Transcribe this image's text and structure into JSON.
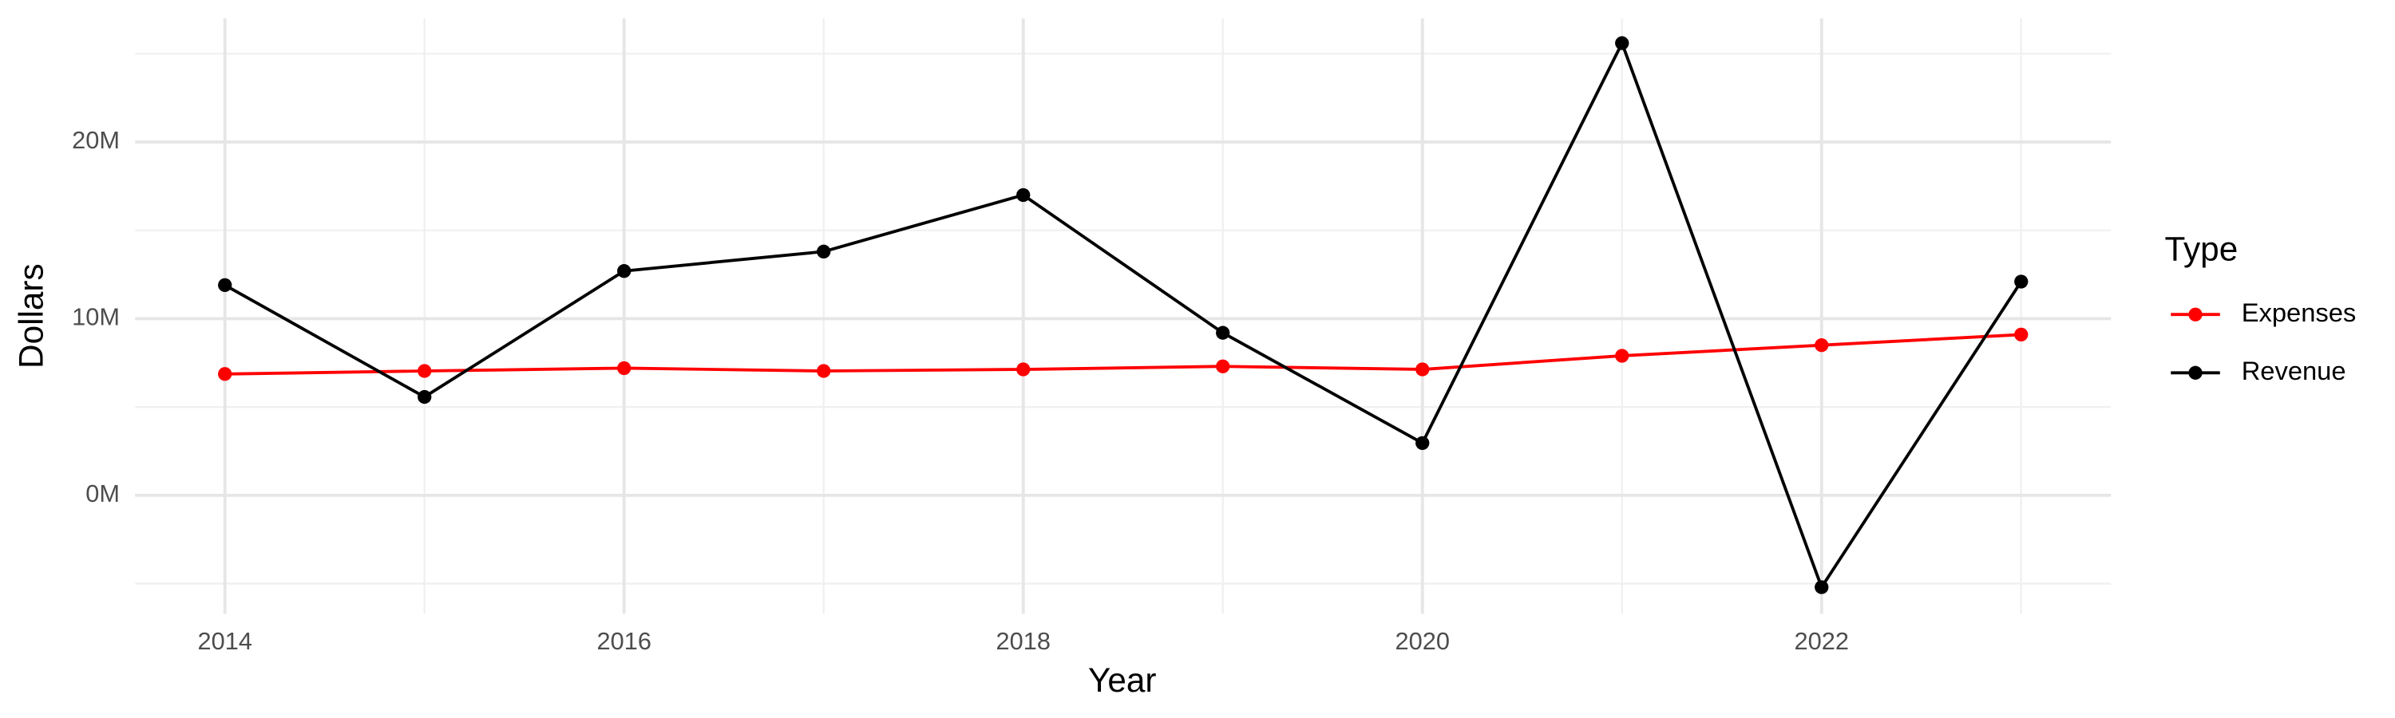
{
  "chart_data": {
    "type": "line",
    "x_label": "Year",
    "y_label": "Dollars",
    "legend_title": "Type",
    "legend_position": "right",
    "x": [
      2014,
      2015,
      2016,
      2017,
      2018,
      2019,
      2020,
      2021,
      2022,
      2023
    ],
    "series": [
      {
        "name": "Expenses",
        "color": "#ff0000",
        "values": [
          6870000,
          7040000,
          7200000,
          7040000,
          7130000,
          7300000,
          7130000,
          7900000,
          8500000,
          9100000
        ]
      },
      {
        "name": "Revenue",
        "color": "#000000",
        "values": [
          11900000,
          5570000,
          12700000,
          13800000,
          17000000,
          9200000,
          2960000,
          25600000,
          -5200000,
          12100000
        ]
      }
    ],
    "xlim": [
      2013.55,
      2023.45
    ],
    "xticks": [
      2014,
      2016,
      2018,
      2020,
      2022
    ],
    "x_minor_ticks": [
      2015,
      2017,
      2019,
      2021,
      2023
    ],
    "ylim": [
      -6700000,
      27000000
    ],
    "yticks": [
      {
        "value": 0,
        "label": "0M"
      },
      {
        "value": 10000000,
        "label": "10M"
      },
      {
        "value": 20000000,
        "label": "20M"
      }
    ],
    "y_minor_ticks": [
      -5000000,
      5000000,
      15000000,
      25000000
    ],
    "grid": true
  }
}
